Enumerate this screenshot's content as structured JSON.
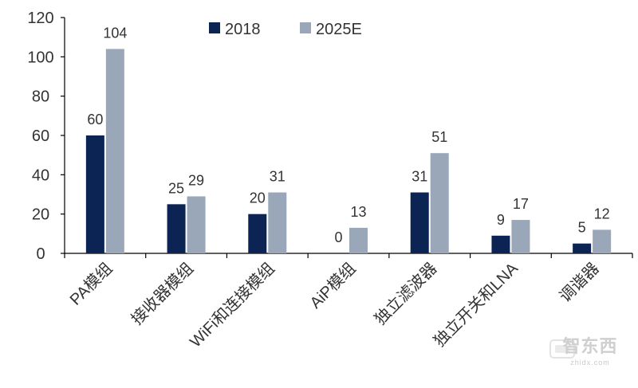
{
  "chart_data": {
    "type": "bar",
    "title": "",
    "xlabel": "",
    "ylabel": "",
    "ylim": [
      0,
      120
    ],
    "yticks": [
      0,
      20,
      40,
      60,
      80,
      100,
      120
    ],
    "grid": false,
    "legend_position": "top-center",
    "categories": [
      "PA模组",
      "接收器模组",
      "WiFi和连接模组",
      "AiP模组",
      "独立滤波器",
      "独立开关和LNA",
      "调谐器"
    ],
    "series": [
      {
        "name": "2018",
        "color": "#0b2454",
        "values": [
          60,
          25,
          20,
          0,
          31,
          9,
          5
        ]
      },
      {
        "name": "2025E",
        "color": "#9aa7b9",
        "values": [
          104,
          29,
          31,
          13,
          51,
          17,
          12
        ]
      }
    ]
  },
  "watermark": {
    "text": "智东西",
    "subtext": "zhidx.com"
  }
}
